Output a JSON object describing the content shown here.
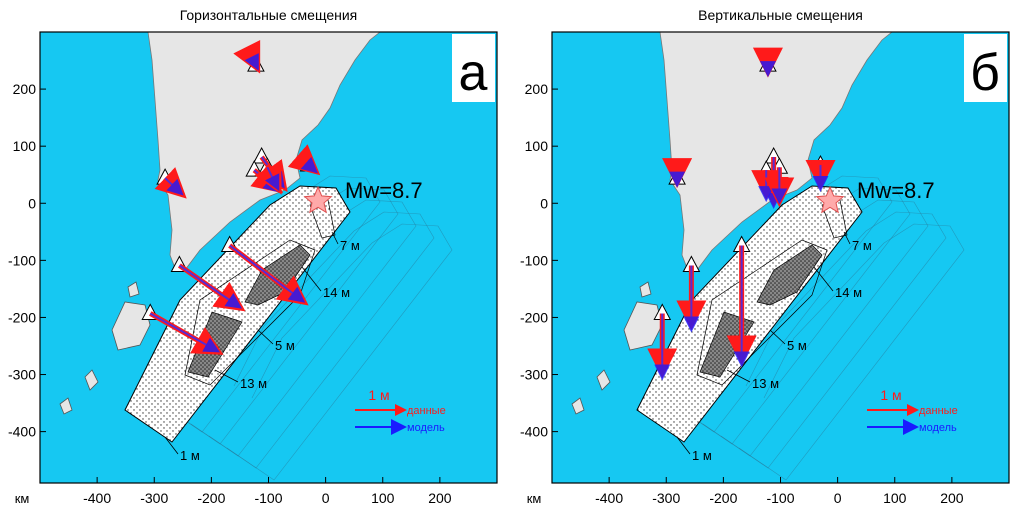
{
  "panels": [
    {
      "title": "Горизонтальные смещения",
      "letter": "а",
      "component": "horizontal",
      "unit": "км",
      "xlim": [
        -500,
        300
      ],
      "ylim": [
        -490,
        300
      ],
      "xticks": [
        -400,
        -300,
        -200,
        -100,
        0,
        100,
        200
      ],
      "yticks": [
        -400,
        -300,
        -200,
        -100,
        0,
        100,
        200
      ],
      "magnitude": "Mw=8.7",
      "contours": [
        "7 м",
        "14 м",
        "5 м",
        "13 м",
        "1 м"
      ],
      "legend": {
        "scale": "1 м",
        "data": "данные",
        "model": "модель"
      }
    },
    {
      "title": "Вертикальные смещения",
      "letter": "б",
      "component": "vertical",
      "unit": "км",
      "xlim": [
        -500,
        300
      ],
      "ylim": [
        -490,
        300
      ],
      "xticks": [
        -400,
        -300,
        -200,
        -100,
        0,
        100,
        200
      ],
      "yticks": [
        -400,
        -300,
        -200,
        -100,
        0,
        100,
        200
      ],
      "magnitude": "Mw=8.7",
      "contours": [
        "7 м",
        "14 м",
        "5 м",
        "13 м",
        "1 м"
      ],
      "legend": {
        "scale": "1 м",
        "data": "данные",
        "model": "модель"
      }
    }
  ],
  "stations": [
    {
      "x": -122,
      "y": 242,
      "horizontal": {
        "data": [
          0.04,
          -0.08
        ],
        "model": [
          0.04,
          -0.08
        ]
      },
      "vertical": {
        "data": -0.15,
        "model": -0.2
      }
    },
    {
      "x": -281,
      "y": 44,
      "horizontal": {
        "data": [
          0.36,
          -0.34
        ],
        "model": [
          0.34,
          -0.32
        ]
      },
      "vertical": {
        "data": -0.1,
        "model": -0.15
      }
    },
    {
      "x": -112,
      "y": 81,
      "horizontal": {
        "data": [
          0.46,
          -0.62
        ],
        "model": [
          0.44,
          -0.6
        ]
      },
      "vertical": {
        "data": -0.9,
        "model": -1.0
      }
    },
    {
      "x": -125,
      "y": 58,
      "horizontal": {
        "data": [
          0.5,
          -0.4
        ],
        "model": [
          0.48,
          -0.42
        ]
      },
      "vertical": {
        "data": -0.5,
        "model": -0.6
      }
    },
    {
      "x": -102,
      "y": 63,
      "horizontal": {
        "data": [
          0.24,
          -0.46
        ],
        "model": [
          0.22,
          -0.44
        ]
      },
      "vertical": {
        "data": -0.7,
        "model": -0.7
      }
    },
    {
      "x": -30,
      "y": 67,
      "horizontal": {
        "data": [
          0.16,
          -0.14
        ],
        "model": [
          0.16,
          -0.14
        ]
      },
      "vertical": {
        "data": -0.4,
        "model": -0.5
      }
    },
    {
      "x": -256,
      "y": -109,
      "horizontal": {
        "data": [
          1.24,
          -0.86
        ],
        "model": [
          1.22,
          -0.84
        ]
      },
      "vertical": {
        "data": -1.2,
        "model": -1.3
      }
    },
    {
      "x": -168,
      "y": -74,
      "horizontal": {
        "data": [
          1.5,
          -1.14
        ],
        "model": [
          1.48,
          -1.12
        ]
      },
      "vertical": {
        "data": -2.3,
        "model": -2.4
      }
    },
    {
      "x": -307,
      "y": -193,
      "horizontal": {
        "data": [
          1.38,
          -0.78
        ],
        "model": [
          1.36,
          -0.76
        ]
      },
      "vertical": {
        "data": -1.2,
        "model": -1.3
      }
    }
  ]
}
